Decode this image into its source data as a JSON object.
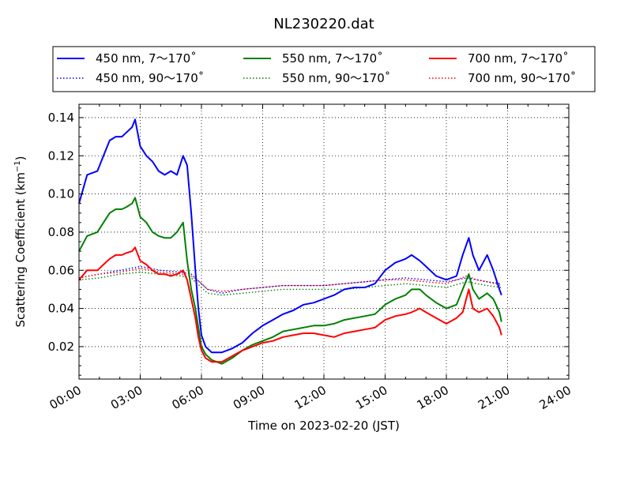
{
  "chart_data": {
    "type": "line",
    "title": "NL230220.dat",
    "xlabel": "Time on 2023-02-20 (JST)",
    "ylabel_main": "Scattering Coefficient (km",
    "ylabel_sup": "−1",
    "ylabel_tail": ")",
    "xlim": [
      0,
      24
    ],
    "ylim": [
      0.003,
      0.147
    ],
    "x_ticks": [
      {
        "value": 0,
        "label": "00:00"
      },
      {
        "value": 3,
        "label": "03:00"
      },
      {
        "value": 6,
        "label": "06:00"
      },
      {
        "value": 9,
        "label": "09:00"
      },
      {
        "value": 12,
        "label": "12:00"
      },
      {
        "value": 15,
        "label": "15:00"
      },
      {
        "value": 18,
        "label": "18:00"
      },
      {
        "value": 21,
        "label": "21:00"
      },
      {
        "value": 24,
        "label": "24:00"
      }
    ],
    "y_ticks": [
      {
        "value": 0.02,
        "label": "0.02"
      },
      {
        "value": 0.04,
        "label": "0.04"
      },
      {
        "value": 0.06,
        "label": "0.06"
      },
      {
        "value": 0.08,
        "label": "0.08"
      },
      {
        "value": 0.1,
        "label": "0.10"
      },
      {
        "value": 0.12,
        "label": "0.12"
      },
      {
        "value": 0.14,
        "label": "0.14"
      }
    ],
    "grid": true,
    "legend_position": "top-center",
    "series": [
      {
        "name": "450 nm, 7～170˚",
        "color": "#0000ff",
        "style": "solid",
        "x": [
          0.0,
          0.4,
          0.9,
          1.2,
          1.5,
          1.8,
          2.1,
          2.3,
          2.6,
          2.75,
          3.0,
          3.3,
          3.6,
          3.9,
          4.2,
          4.5,
          4.8,
          5.1,
          5.3,
          5.5,
          5.7,
          5.85,
          6.0,
          6.2,
          6.5,
          7.0,
          7.5,
          8.0,
          8.5,
          9.0,
          9.5,
          10.0,
          10.5,
          11.0,
          11.5,
          12.0,
          12.5,
          13.0,
          13.5,
          14.0,
          14.5,
          15.0,
          15.5,
          16.0,
          16.3,
          16.7,
          17.0,
          17.5,
          18.0,
          18.5,
          18.8,
          19.1,
          19.3,
          19.6,
          20.0,
          20.3,
          20.6,
          20.7
        ],
        "y": [
          0.095,
          0.11,
          0.112,
          0.12,
          0.128,
          0.13,
          0.13,
          0.132,
          0.135,
          0.139,
          0.125,
          0.12,
          0.117,
          0.112,
          0.11,
          0.112,
          0.11,
          0.12,
          0.115,
          0.09,
          0.06,
          0.04,
          0.026,
          0.02,
          0.017,
          0.017,
          0.019,
          0.022,
          0.027,
          0.031,
          0.034,
          0.037,
          0.039,
          0.042,
          0.043,
          0.045,
          0.047,
          0.05,
          0.051,
          0.051,
          0.053,
          0.06,
          0.064,
          0.066,
          0.068,
          0.065,
          0.062,
          0.057,
          0.055,
          0.057,
          0.068,
          0.077,
          0.068,
          0.06,
          0.068,
          0.06,
          0.05,
          0.047
        ]
      },
      {
        "name": "550 nm, 7～170˚",
        "color": "#008000",
        "style": "solid",
        "x": [
          0.0,
          0.4,
          0.9,
          1.2,
          1.5,
          1.8,
          2.1,
          2.3,
          2.6,
          2.75,
          3.0,
          3.3,
          3.6,
          3.9,
          4.2,
          4.5,
          4.8,
          5.1,
          5.3,
          5.5,
          5.7,
          5.85,
          6.0,
          6.2,
          6.5,
          7.0,
          7.5,
          8.0,
          8.5,
          9.0,
          9.5,
          10.0,
          10.5,
          11.0,
          11.5,
          12.0,
          12.5,
          13.0,
          13.5,
          14.0,
          14.5,
          15.0,
          15.5,
          16.0,
          16.3,
          16.7,
          17.0,
          17.5,
          18.0,
          18.5,
          18.8,
          19.1,
          19.3,
          19.6,
          20.0,
          20.3,
          20.6,
          20.7
        ],
        "y": [
          0.07,
          0.078,
          0.08,
          0.085,
          0.09,
          0.092,
          0.092,
          0.093,
          0.095,
          0.098,
          0.088,
          0.085,
          0.08,
          0.078,
          0.077,
          0.077,
          0.08,
          0.085,
          0.065,
          0.05,
          0.04,
          0.03,
          0.02,
          0.016,
          0.013,
          0.011,
          0.014,
          0.018,
          0.021,
          0.023,
          0.025,
          0.028,
          0.029,
          0.03,
          0.031,
          0.031,
          0.032,
          0.034,
          0.035,
          0.036,
          0.037,
          0.042,
          0.045,
          0.047,
          0.05,
          0.05,
          0.047,
          0.043,
          0.04,
          0.042,
          0.05,
          0.058,
          0.05,
          0.045,
          0.048,
          0.045,
          0.038,
          0.033
        ]
      },
      {
        "name": "700 nm, 7～170˚",
        "color": "#ff0000",
        "style": "solid",
        "x": [
          0.0,
          0.4,
          0.9,
          1.2,
          1.5,
          1.8,
          2.1,
          2.3,
          2.6,
          2.75,
          3.0,
          3.3,
          3.6,
          3.9,
          4.2,
          4.5,
          4.8,
          5.1,
          5.3,
          5.5,
          5.7,
          5.85,
          6.0,
          6.2,
          6.5,
          7.0,
          7.5,
          8.0,
          8.5,
          9.0,
          9.5,
          10.0,
          10.5,
          11.0,
          11.5,
          12.0,
          12.5,
          13.0,
          13.5,
          14.0,
          14.5,
          15.0,
          15.5,
          16.0,
          16.3,
          16.7,
          17.0,
          17.5,
          18.0,
          18.5,
          18.8,
          19.1,
          19.3,
          19.6,
          20.0,
          20.3,
          20.6,
          20.7
        ],
        "y": [
          0.055,
          0.06,
          0.06,
          0.063,
          0.066,
          0.068,
          0.068,
          0.069,
          0.07,
          0.072,
          0.065,
          0.063,
          0.06,
          0.058,
          0.058,
          0.057,
          0.058,
          0.06,
          0.055,
          0.045,
          0.035,
          0.025,
          0.018,
          0.014,
          0.012,
          0.012,
          0.015,
          0.018,
          0.02,
          0.022,
          0.023,
          0.025,
          0.026,
          0.027,
          0.027,
          0.026,
          0.025,
          0.027,
          0.028,
          0.029,
          0.03,
          0.034,
          0.036,
          0.037,
          0.038,
          0.04,
          0.038,
          0.035,
          0.032,
          0.035,
          0.038,
          0.05,
          0.04,
          0.038,
          0.04,
          0.036,
          0.03,
          0.026
        ]
      },
      {
        "name": "450 nm, 90～170˚",
        "color": "#0000ff",
        "style": "dotted",
        "x": [
          0.0,
          1.0,
          2.0,
          3.0,
          4.0,
          5.0,
          5.5,
          5.9,
          6.3,
          7.0,
          8.0,
          9.0,
          10.0,
          11.0,
          12.0,
          13.0,
          14.0,
          15.0,
          16.0,
          17.0,
          18.0,
          19.0,
          19.5,
          20.0,
          20.7
        ],
        "y": [
          0.056,
          0.058,
          0.06,
          0.062,
          0.06,
          0.059,
          0.058,
          0.054,
          0.05,
          0.048,
          0.05,
          0.051,
          0.052,
          0.052,
          0.052,
          0.053,
          0.054,
          0.055,
          0.056,
          0.055,
          0.054,
          0.056,
          0.055,
          0.054,
          0.053
        ]
      },
      {
        "name": "550 nm, 90～170˚",
        "color": "#008000",
        "style": "dotted",
        "x": [
          0.0,
          1.0,
          2.0,
          3.0,
          4.0,
          5.0,
          5.5,
          5.9,
          6.3,
          7.0,
          8.0,
          9.0,
          10.0,
          11.0,
          12.0,
          13.0,
          14.0,
          15.0,
          16.0,
          17.0,
          18.0,
          19.0,
          19.5,
          20.0,
          20.7
        ],
        "y": [
          0.055,
          0.056,
          0.058,
          0.059,
          0.058,
          0.057,
          0.056,
          0.052,
          0.048,
          0.047,
          0.048,
          0.049,
          0.05,
          0.05,
          0.05,
          0.05,
          0.051,
          0.052,
          0.053,
          0.052,
          0.051,
          0.054,
          0.053,
          0.052,
          0.051
        ]
      },
      {
        "name": "700 nm, 90～170˚",
        "color": "#ff0000",
        "style": "dotted",
        "x": [
          0.0,
          1.0,
          2.0,
          3.0,
          4.0,
          5.0,
          5.5,
          5.9,
          6.3,
          7.0,
          8.0,
          9.0,
          10.0,
          11.0,
          12.0,
          13.0,
          14.0,
          15.0,
          16.0,
          17.0,
          18.0,
          19.0,
          19.5,
          20.0,
          20.7
        ],
        "y": [
          0.056,
          0.058,
          0.059,
          0.061,
          0.059,
          0.058,
          0.057,
          0.054,
          0.05,
          0.049,
          0.05,
          0.051,
          0.052,
          0.052,
          0.052,
          0.053,
          0.054,
          0.055,
          0.055,
          0.054,
          0.053,
          0.057,
          0.055,
          0.054,
          0.052
        ]
      }
    ]
  }
}
